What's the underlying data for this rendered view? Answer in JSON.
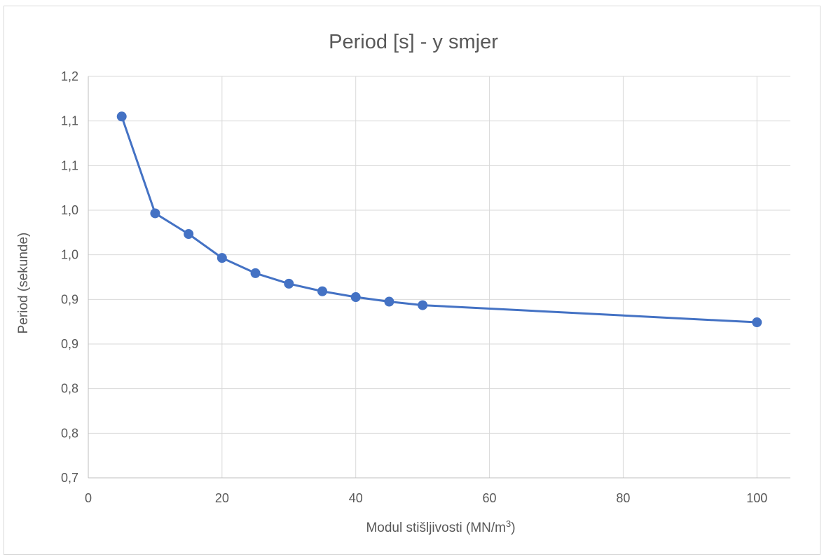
{
  "chart_data": {
    "type": "line",
    "title": "Period [s] - y smjer",
    "xlabel": "Modul stišljivosti (MN/m",
    "xlabel_sup": "3",
    "xlabel_end": ")",
    "ylabel": "Period (sekunde)",
    "x_ticks": [
      "0",
      "20",
      "40",
      "60",
      "80",
      "100"
    ],
    "x_tick_values": [
      0,
      20,
      40,
      60,
      80,
      100
    ],
    "y_ticks": [
      "0,7",
      "0,8",
      "0,8",
      "0,9",
      "0,9",
      "1,0",
      "1,0",
      "1,1",
      "1,1",
      "1,2"
    ],
    "y_tick_values": [
      0.7,
      0.75,
      0.8,
      0.85,
      0.9,
      0.95,
      1.0,
      1.05,
      1.1,
      1.15
    ],
    "xlim": [
      0,
      105
    ],
    "ylim": [
      0.7,
      1.15
    ],
    "grid": true,
    "color": "#4472c4",
    "series": [
      {
        "x": [
          5,
          10,
          15,
          20,
          25,
          30,
          35,
          40,
          45,
          50,
          100
        ],
        "y": [
          1.105,
          0.9965,
          0.9733,
          0.9465,
          0.9294,
          0.9176,
          0.9091,
          0.9026,
          0.8975,
          0.8935,
          0.8743
        ]
      }
    ]
  }
}
